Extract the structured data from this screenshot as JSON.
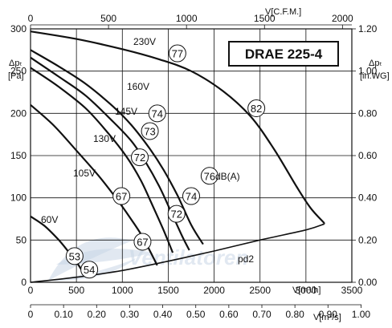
{
  "chart_data": {
    "type": "line",
    "title": "DRAE 225-4",
    "axes": {
      "bottom_m3h": {
        "label": "V[m³/h]",
        "range": [
          0,
          3500
        ],
        "ticks": [
          "0",
          "500",
          "1000",
          "1500",
          "2000",
          "2500",
          "3000",
          "3500"
        ]
      },
      "bottom_m3s": {
        "label": "V[m³/s]",
        "range": [
          0,
          1.0
        ],
        "ticks": [
          "0",
          "0.10",
          "0.20",
          "0.30",
          "0.40",
          "0.50",
          "0.60",
          "0.70",
          "0.80",
          "0.90",
          "1.00"
        ]
      },
      "top_cfm": {
        "label": "V[C.F.M.]",
        "range": [
          0,
          2000
        ],
        "ticks": [
          "0",
          "500",
          "1000",
          "1500",
          "2000"
        ]
      },
      "left_pa": {
        "label_main": "Δpₜ",
        "label_unit": "[Pa]",
        "range": [
          0,
          300
        ],
        "ticks": [
          "0",
          "50",
          "100",
          "150",
          "200",
          "250",
          "300"
        ]
      },
      "right_inwg": {
        "label_main": "Δpₜ",
        "label_unit": "[in.WG]",
        "range": [
          0,
          1.2
        ],
        "ticks": [
          "0.00",
          "0.20",
          "0.40",
          "0.60",
          "0.80",
          "1.00",
          "1.20"
        ]
      }
    },
    "grid": true,
    "series": [
      {
        "name": "230V",
        "x": [
          0,
          500,
          1000,
          1400,
          1750,
          2100,
          2400,
          2650,
          2900,
          3050,
          3200
        ],
        "y": [
          297,
          288,
          276,
          264,
          250,
          226,
          196,
          158,
          113,
          88,
          70
        ]
      },
      {
        "name": "160V",
        "x": [
          0,
          300,
          600,
          900,
          1100,
          1300,
          1450,
          1600,
          1750,
          1880
        ],
        "y": [
          275,
          256,
          235,
          208,
          186,
          158,
          133,
          103,
          68,
          45
        ]
      },
      {
        "name": "145V",
        "x": [
          0,
          300,
          600,
          900,
          1100,
          1250,
          1400,
          1520,
          1650,
          1730
        ],
        "y": [
          266,
          244,
          221,
          190,
          167,
          143,
          114,
          86,
          55,
          38
        ]
      },
      {
        "name": "130V",
        "x": [
          0,
          300,
          600,
          850,
          1050,
          1200,
          1320,
          1440,
          1550
        ],
        "y": [
          254,
          232,
          206,
          176,
          148,
          121,
          93,
          64,
          35
        ]
      },
      {
        "name": "105V",
        "x": [
          0,
          250,
          500,
          750,
          950,
          1100,
          1220,
          1320,
          1380
        ],
        "y": [
          210,
          186,
          156,
          125,
          97,
          74,
          54,
          33,
          20
        ]
      },
      {
        "name": "60V",
        "x": [
          0,
          150,
          300,
          400,
          500,
          560,
          600
        ],
        "y": [
          78,
          67,
          51,
          38,
          24,
          14,
          8
        ]
      }
    ],
    "system_curve": {
      "name": "pd2",
      "x": [
        0,
        500,
        1000,
        1500,
        2000,
        2500,
        3000,
        3200
      ],
      "y": [
        0,
        6,
        14,
        25,
        37,
        50,
        62,
        69
      ]
    },
    "sound_markers": [
      {
        "label": "77",
        "x": 1600,
        "y": 271
      },
      {
        "label": "82",
        "x": 2460,
        "y": 206
      },
      {
        "label": "74",
        "x": 1380,
        "y": 200
      },
      {
        "label": "73",
        "x": 1300,
        "y": 179
      },
      {
        "label": "72",
        "x": 1190,
        "y": 148
      },
      {
        "label": "76",
        "x": 1950,
        "y": 126
      },
      {
        "label": "67",
        "x": 990,
        "y": 102
      },
      {
        "label": "74",
        "x": 1750,
        "y": 102
      },
      {
        "label": "72",
        "x": 1590,
        "y": 81
      },
      {
        "label": "67",
        "x": 1220,
        "y": 48
      },
      {
        "label": "53",
        "x": 480,
        "y": 31
      },
      {
        "label": "54",
        "x": 640,
        "y": 15
      }
    ],
    "annotations": {
      "db_label": "dB(A)",
      "pd2_label": "pd2",
      "watermark": "Ventilatoren"
    }
  }
}
